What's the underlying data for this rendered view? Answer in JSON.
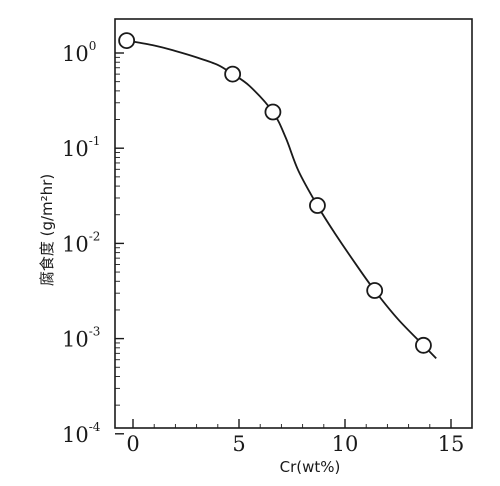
{
  "chart_data": {
    "type": "scatter",
    "title": "",
    "xlabel": "Cr(wt%)",
    "ylabel": "腐食度 (g/m²hr)",
    "xlim": [
      -1,
      16
    ],
    "ylim": [
      0.0001,
      3
    ],
    "yscale": "log",
    "grid": false,
    "legend": null,
    "x_ticks": [
      "0",
      "5",
      "10",
      "15"
    ],
    "y_ticks": [
      {
        "base": "10",
        "exp": "0"
      },
      {
        "base": "10",
        "exp": "-1"
      },
      {
        "base": "10",
        "exp": "-2"
      },
      {
        "base": "10",
        "exp": "-3"
      },
      {
        "base": "10",
        "exp": "-4"
      }
    ],
    "series": [
      {
        "marker": "open-circle",
        "x": [
          -0.3,
          4.7,
          6.6,
          8.7,
          11.4,
          13.7
        ],
        "y": [
          1.35,
          0.6,
          0.24,
          0.025,
          0.0032,
          0.00085
        ]
      }
    ],
    "fit_curve": {
      "x": [
        -0.3,
        1,
        2,
        3,
        4,
        4.7,
        5.5,
        6.6,
        7.2,
        7.8,
        8.7,
        9.5,
        10.5,
        11.4,
        12.5,
        13.7,
        14.3
      ],
      "y": [
        1.35,
        1.2,
        1.05,
        0.9,
        0.75,
        0.6,
        0.45,
        0.24,
        0.13,
        0.058,
        0.025,
        0.013,
        0.0061,
        0.0032,
        0.0016,
        0.00085,
        0.00062
      ]
    },
    "colors": {
      "ink": "#1a1a1a"
    }
  }
}
